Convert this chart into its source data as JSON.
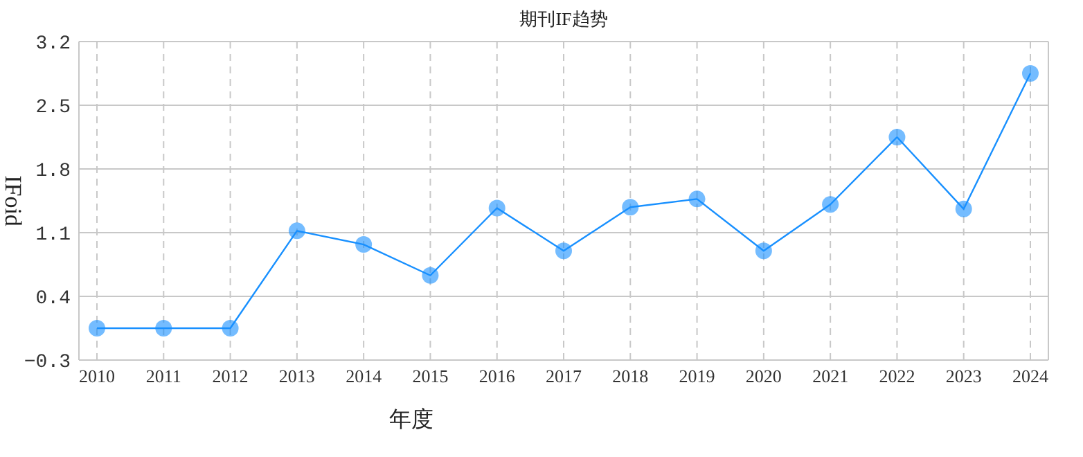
{
  "chart_data": {
    "type": "line",
    "title": "期刊IF趋势",
    "xlabel": "年度",
    "ylabel": "IFoid",
    "categories": [
      "2010",
      "2011",
      "2012",
      "2013",
      "2014",
      "2015",
      "2016",
      "2017",
      "2018",
      "2019",
      "2020",
      "2021",
      "2022",
      "2023",
      "2024"
    ],
    "series": [
      {
        "color": "#1890ff",
        "values": [
          0.05,
          0.05,
          0.05,
          1.12,
          0.97,
          0.63,
          1.37,
          0.9,
          1.38,
          1.47,
          0.9,
          1.41,
          2.15,
          1.36,
          2.85
        ]
      }
    ],
    "ylim": [
      -0.3,
      3.2
    ],
    "yticks": [
      -0.3,
      0.4,
      1.1,
      1.8,
      2.5,
      3.2
    ],
    "grid": true,
    "marker": "circle",
    "line_style": "solid"
  }
}
